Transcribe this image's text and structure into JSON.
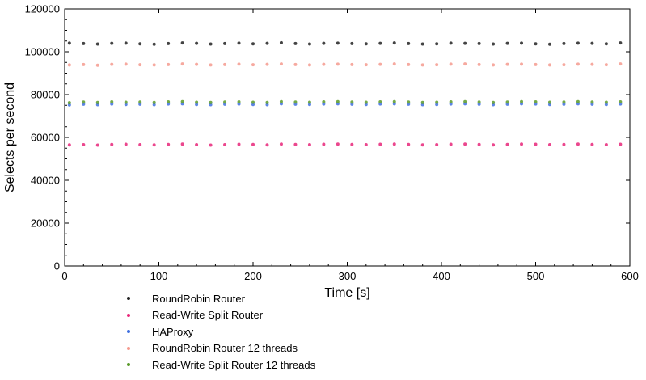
{
  "chart_data": {
    "type": "scatter",
    "xlabel": "Time [s]",
    "ylabel": "Selects per second",
    "xlim": [
      0,
      600
    ],
    "ylim": [
      0,
      120000
    ],
    "x_ticks": [
      "0",
      "100",
      "200",
      "300",
      "400",
      "500",
      "600"
    ],
    "y_ticks": [
      "0",
      "20000",
      "40000",
      "60000",
      "80000",
      "100000",
      "120000"
    ],
    "grid": false,
    "legend_position": "bottom-left, below plot",
    "series": [
      {
        "name": "RoundRobin Router",
        "color": "#222222",
        "x": [
          5,
          20,
          35,
          50,
          65,
          80,
          95,
          110,
          125,
          140,
          155,
          170,
          185,
          200,
          215,
          230,
          245,
          260,
          275,
          290,
          305,
          320,
          335,
          350,
          365,
          380,
          395,
          410,
          425,
          440,
          455,
          470,
          485,
          500,
          515,
          530,
          545,
          560,
          575,
          590
        ],
        "y": [
          104000,
          103800,
          103600,
          103900,
          104000,
          103700,
          103500,
          103800,
          104100,
          103900,
          103600,
          103800,
          104000,
          103700,
          103900,
          104200,
          103800,
          103600,
          103900,
          104000,
          103800,
          103700,
          103900,
          104100,
          103800,
          103600,
          103700,
          104000,
          103900,
          103800,
          103600,
          103900,
          104000,
          103700,
          103500,
          103800,
          104000,
          103900,
          103700,
          104100
        ]
      },
      {
        "name": "Read-Write Split Router",
        "color": "#e8277a",
        "x": [
          5,
          20,
          35,
          50,
          65,
          80,
          95,
          110,
          125,
          140,
          155,
          170,
          185,
          200,
          215,
          230,
          245,
          260,
          275,
          290,
          305,
          320,
          335,
          350,
          365,
          380,
          395,
          410,
          425,
          440,
          455,
          470,
          485,
          500,
          515,
          530,
          545,
          560,
          575,
          590
        ],
        "y": [
          56500,
          56600,
          56400,
          56700,
          56800,
          56600,
          56500,
          56700,
          56900,
          56600,
          56400,
          56600,
          56800,
          56700,
          56500,
          56900,
          56700,
          56600,
          56800,
          56900,
          56700,
          56600,
          56800,
          56900,
          56700,
          56500,
          56600,
          56800,
          56900,
          56700,
          56500,
          56700,
          56900,
          56800,
          56600,
          56700,
          56900,
          56700,
          56600,
          56800
        ]
      },
      {
        "name": "HAProxy",
        "color": "#3f6fe0",
        "x": [
          5,
          20,
          35,
          50,
          65,
          80,
          95,
          110,
          125,
          140,
          155,
          170,
          185,
          200,
          215,
          230,
          245,
          260,
          275,
          290,
          305,
          320,
          335,
          350,
          365,
          380,
          395,
          410,
          425,
          440,
          455,
          470,
          485,
          500,
          515,
          530,
          545,
          560,
          575,
          590
        ],
        "y": [
          75200,
          75500,
          75300,
          75600,
          75400,
          75500,
          75300,
          75600,
          75700,
          75400,
          75300,
          75500,
          75600,
          75400,
          75300,
          75700,
          75500,
          75400,
          75600,
          75700,
          75500,
          75400,
          75600,
          75700,
          75500,
          75300,
          75400,
          75600,
          75700,
          75500,
          75300,
          75500,
          75700,
          75600,
          75400,
          75500,
          75700,
          75500,
          75400,
          75600
        ]
      },
      {
        "name": "RoundRobin Router 12 threads",
        "color": "#f59a8e",
        "x": [
          5,
          20,
          35,
          50,
          65,
          80,
          95,
          110,
          125,
          140,
          155,
          170,
          185,
          200,
          215,
          230,
          245,
          260,
          275,
          290,
          305,
          320,
          335,
          350,
          365,
          380,
          395,
          410,
          425,
          440,
          455,
          470,
          485,
          500,
          515,
          530,
          545,
          560,
          575,
          590
        ],
        "y": [
          93800,
          94000,
          93700,
          94100,
          94200,
          93900,
          93800,
          94000,
          94300,
          94100,
          93800,
          94000,
          94200,
          93900,
          94100,
          94300,
          94000,
          93800,
          94100,
          94200,
          94000,
          93900,
          94100,
          94300,
          94000,
          93800,
          93900,
          94200,
          94300,
          94000,
          93800,
          94100,
          94200,
          94000,
          93800,
          93900,
          94200,
          94100,
          93900,
          94300
        ]
      },
      {
        "name": "Read-Write Split Router 12 threads",
        "color": "#5a9a2a",
        "x": [
          5,
          20,
          35,
          50,
          65,
          80,
          95,
          110,
          125,
          140,
          155,
          170,
          185,
          200,
          215,
          230,
          245,
          260,
          275,
          290,
          305,
          320,
          335,
          350,
          365,
          380,
          395,
          410,
          425,
          440,
          455,
          470,
          485,
          500,
          515,
          530,
          545,
          560,
          575,
          590
        ],
        "y": [
          76200,
          76500,
          76300,
          76600,
          76400,
          76500,
          76300,
          76600,
          76700,
          76400,
          76300,
          76500,
          76600,
          76400,
          76300,
          76700,
          76500,
          76400,
          76600,
          76700,
          76500,
          76400,
          76600,
          76700,
          76500,
          76300,
          76400,
          76600,
          76700,
          76500,
          76300,
          76500,
          76700,
          76600,
          76400,
          76500,
          76700,
          76500,
          76400,
          76600
        ]
      }
    ]
  }
}
